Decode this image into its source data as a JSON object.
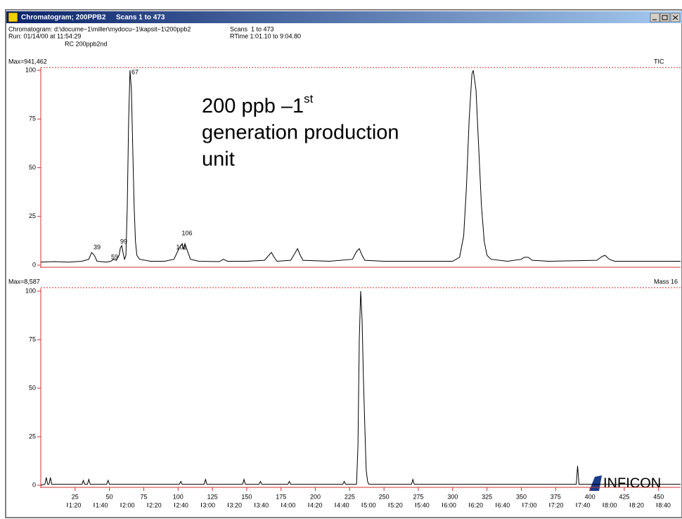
{
  "window": {
    "title": "Chromatogram; 200PPB2",
    "title_scans": "Scans 1 to 473"
  },
  "header": {
    "file": "Chromatogram: d:\\docume~1\\miller\\mydocu~1\\kapsit~1\\200ppb2",
    "run": "Run: 01/14/00 at 11:54:29",
    "comment": "RC 200ppb2nd",
    "scans_label": "Scans",
    "scans": "1 to 473",
    "rtime": "RTime 1:01.10 to 9:04.80"
  },
  "annotation": {
    "line1": "200 ppb –1",
    "superscript": "st",
    "line2": "generation production",
    "line3": "unit"
  },
  "logo": "INFICON",
  "chart_data": [
    {
      "type": "line",
      "max_label": "Max=941,462",
      "trace_label": "TIC",
      "color": "#000000",
      "xlim": [
        0,
        466
      ],
      "ylim": [
        0,
        100
      ],
      "yticks": [
        0,
        25,
        50,
        75,
        100
      ],
      "peak_labels": [
        "39",
        "59",
        "99",
        "67",
        "101",
        "106"
      ],
      "x": [
        0,
        10,
        20,
        30,
        35,
        37,
        39,
        41,
        48,
        51,
        53,
        55,
        57,
        58,
        59,
        60,
        61,
        62,
        63,
        64,
        65,
        66,
        67,
        68,
        69,
        70,
        72,
        80,
        90,
        97,
        99,
        101,
        103,
        104,
        105,
        107,
        109,
        115,
        130,
        133,
        136,
        150,
        163,
        166,
        168,
        170,
        172,
        182,
        185,
        187,
        189,
        191,
        210,
        227,
        230,
        232,
        234,
        236,
        250,
        300,
        305,
        308,
        310,
        312,
        314,
        315,
        317,
        319,
        321,
        323,
        325,
        328,
        340,
        350,
        352,
        355,
        358,
        370,
        405,
        409,
        411,
        414,
        418,
        440,
        466
      ],
      "values": [
        1.5,
        1.8,
        1.5,
        2,
        3,
        6.5,
        5,
        2,
        1.5,
        2,
        3,
        2.5,
        5,
        9,
        10,
        6,
        3,
        5,
        30,
        75,
        100,
        90,
        60,
        30,
        12,
        5,
        3,
        2,
        2,
        3,
        6,
        9,
        11,
        8,
        11,
        7,
        3,
        2,
        1.8,
        3,
        2,
        2,
        2.5,
        5,
        6.5,
        4,
        2,
        2.5,
        6,
        8.5,
        5,
        2.5,
        2,
        3,
        7,
        8.5,
        5,
        2.5,
        2,
        2,
        4,
        15,
        40,
        75,
        98,
        100,
        90,
        60,
        30,
        12,
        5,
        3,
        2,
        3,
        4,
        4,
        2.5,
        2,
        2.5,
        4.5,
        5,
        3,
        2,
        2,
        2
      ]
    },
    {
      "type": "line",
      "max_label": "Max=8,587",
      "trace_label": "Mass 16",
      "color": "#000000",
      "xlim": [
        0,
        466
      ],
      "ylim": [
        0,
        100
      ],
      "yticks": [
        0,
        25,
        50,
        75,
        100
      ],
      "xticks": [
        25,
        50,
        75,
        100,
        125,
        150,
        175,
        200,
        225,
        250,
        275,
        300,
        325,
        350,
        375,
        400,
        425,
        450
      ],
      "x2ticks": [
        {
          "value": 19.4,
          "label": "1:20"
        },
        {
          "value": 38.9,
          "label": "1:40"
        },
        {
          "value": 58.4,
          "label": "2:00"
        },
        {
          "value": 77.9,
          "label": "2:20"
        },
        {
          "value": 97.5,
          "label": "2:40"
        },
        {
          "value": 117.0,
          "label": "3:00"
        },
        {
          "value": 136.5,
          "label": "3:20"
        },
        {
          "value": 156.0,
          "label": "3:40"
        },
        {
          "value": 175.5,
          "label": "4:00"
        },
        {
          "value": 195.1,
          "label": "4:20"
        },
        {
          "value": 214.6,
          "label": "4:40"
        },
        {
          "value": 234.1,
          "label": "5:00"
        },
        {
          "value": 253.6,
          "label": "5:20"
        },
        {
          "value": 273.1,
          "label": "5:40"
        },
        {
          "value": 292.6,
          "label": "6:00"
        },
        {
          "value": 312.2,
          "label": "6:20"
        },
        {
          "value": 331.7,
          "label": "6:40"
        },
        {
          "value": 351.2,
          "label": "7:00"
        },
        {
          "value": 370.7,
          "label": "7:20"
        },
        {
          "value": 390.2,
          "label": "7:40"
        },
        {
          "value": 409.7,
          "label": "8:00"
        },
        {
          "value": 429.3,
          "label": "8:20"
        },
        {
          "value": 448.8,
          "label": "8:40"
        }
      ],
      "x": [
        0,
        3,
        4,
        5,
        6,
        7,
        8,
        30,
        31,
        32,
        34,
        35,
        36,
        48,
        49,
        50,
        101,
        102,
        103,
        119,
        120,
        121,
        147,
        148,
        149,
        159,
        160,
        161,
        180,
        181,
        182,
        220,
        221,
        222,
        230,
        231,
        232,
        233,
        234,
        235,
        236,
        237,
        238,
        239,
        270,
        271,
        272,
        390,
        391,
        392,
        466
      ],
      "values": [
        0,
        0.5,
        4,
        0.5,
        0.5,
        4,
        0.5,
        0.5,
        2.5,
        0.5,
        0.5,
        3,
        0.5,
        0.5,
        2.5,
        0.5,
        0.5,
        2,
        0.5,
        0.5,
        3,
        0.5,
        0.5,
        3,
        0.5,
        0.5,
        2,
        0.5,
        0.5,
        2,
        0.5,
        0.5,
        2,
        0.5,
        0.5,
        20,
        75,
        100,
        85,
        55,
        30,
        8,
        2,
        0.5,
        0.5,
        3,
        0.5,
        0.5,
        10,
        0.5,
        0.5
      ]
    }
  ]
}
